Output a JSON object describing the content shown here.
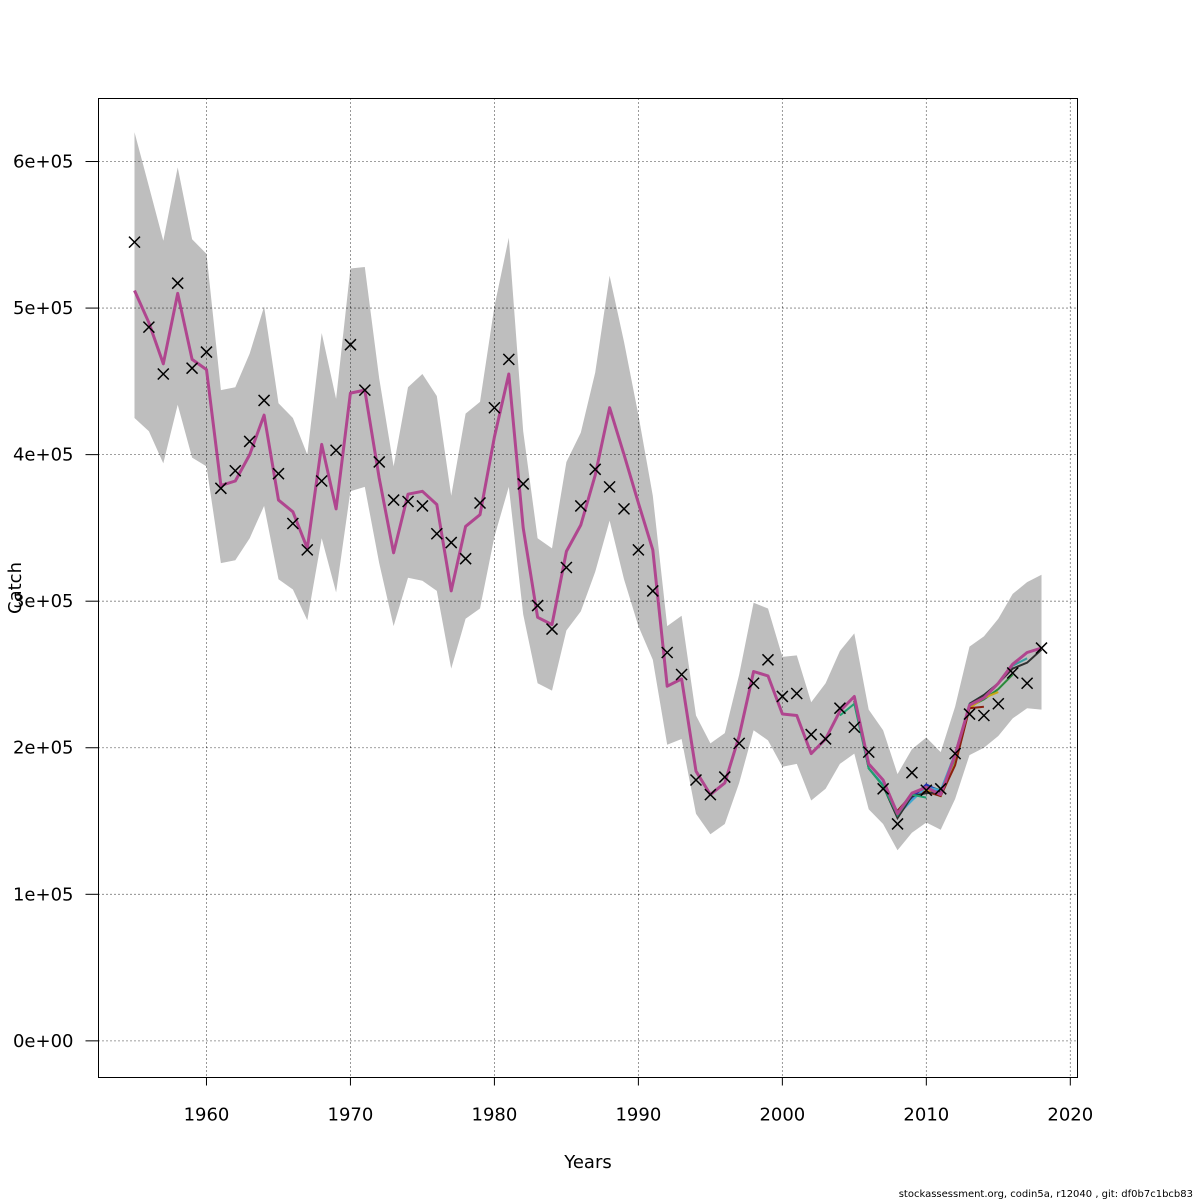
{
  "chart_data": {
    "type": "line",
    "xlabel": "Years",
    "ylabel": "Catch",
    "xlim": [
      1952.5,
      2020.5
    ],
    "ylim": [
      -25000,
      643000
    ],
    "xticks": [
      1960,
      1970,
      1980,
      1990,
      2000,
      2010,
      2020
    ],
    "xtick_labels": [
      "1960",
      "1970",
      "1980",
      "1990",
      "2000",
      "2010",
      "2020"
    ],
    "yticks": [
      0,
      100000,
      200000,
      300000,
      400000,
      500000,
      600000
    ],
    "ytick_labels": [
      "0e+00",
      "1e+05",
      "2e+05",
      "3e+05",
      "4e+05",
      "5e+05",
      "6e+05"
    ],
    "grid": true,
    "footer": "stockassessment.org, codin5a, r12040 , git: df0b7c1bcb83",
    "colors": {
      "band": "#bebebe",
      "main_line": "#b0468f",
      "observations": "#000000",
      "retro": [
        "#3a9e9e",
        "#2a8a3a",
        "#c8a818",
        "#8a2010",
        "#2030b0",
        "#40a8d0",
        "#303030",
        "#20a070"
      ]
    },
    "years": [
      1955,
      1956,
      1957,
      1958,
      1959,
      1960,
      1961,
      1962,
      1963,
      1964,
      1965,
      1966,
      1967,
      1968,
      1969,
      1970,
      1971,
      1972,
      1973,
      1974,
      1975,
      1976,
      1977,
      1978,
      1979,
      1980,
      1981,
      1982,
      1983,
      1984,
      1985,
      1986,
      1987,
      1988,
      1989,
      1990,
      1991,
      1992,
      1993,
      1994,
      1995,
      1996,
      1997,
      1998,
      1999,
      2000,
      2001,
      2002,
      2003,
      2004,
      2005,
      2006,
      2007,
      2008,
      2009,
      2010,
      2011,
      2012,
      2013,
      2014,
      2015,
      2016,
      2017,
      2018
    ],
    "observed_catch": [
      545000,
      487000,
      455000,
      517000,
      459000,
      470000,
      377000,
      389000,
      409000,
      437000,
      387000,
      353000,
      335000,
      382000,
      403000,
      475000,
      444000,
      395000,
      369000,
      368000,
      365000,
      346000,
      340000,
      329000,
      367000,
      432000,
      465000,
      380000,
      297000,
      281000,
      323000,
      365000,
      390000,
      378000,
      363000,
      335000,
      307000,
      265000,
      250000,
      178000,
      168000,
      180000,
      203000,
      244000,
      260000,
      235000,
      237000,
      209000,
      206000,
      227000,
      214000,
      197000,
      172000,
      148000,
      183000,
      171000,
      172000,
      196000,
      223000,
      222000,
      230000,
      251000,
      244000,
      268000
    ],
    "estimated_catch": [
      512000,
      490000,
      462000,
      510000,
      465000,
      458000,
      379000,
      382000,
      400000,
      427000,
      369000,
      361000,
      336000,
      407000,
      363000,
      442000,
      444000,
      384000,
      333000,
      373000,
      375000,
      366000,
      307000,
      351000,
      359000,
      412000,
      455000,
      350000,
      289000,
      284000,
      334000,
      352000,
      386000,
      432000,
      400000,
      367000,
      335000,
      242000,
      247000,
      184000,
      168000,
      176000,
      208000,
      252000,
      249000,
      223000,
      222000,
      196000,
      206000,
      225000,
      235000,
      189000,
      178000,
      155000,
      169000,
      173000,
      168000,
      195000,
      229000,
      234000,
      244000,
      257000,
      265000,
      268000
    ],
    "ci_lower": [
      425000,
      416000,
      394000,
      434000,
      398000,
      392000,
      326000,
      328000,
      343000,
      365000,
      315000,
      308000,
      287000,
      343000,
      306000,
      375000,
      378000,
      326000,
      283000,
      316000,
      314000,
      307000,
      254000,
      288000,
      295000,
      344000,
      378000,
      291000,
      244000,
      239000,
      280000,
      293000,
      320000,
      355000,
      315000,
      283000,
      260000,
      202000,
      206000,
      155000,
      141000,
      148000,
      176000,
      212000,
      205000,
      187000,
      189000,
      164000,
      172000,
      189000,
      196000,
      158000,
      148000,
      130000,
      142000,
      149000,
      144000,
      165000,
      195000,
      200000,
      208000,
      220000,
      227000,
      226000
    ],
    "ci_upper": [
      620000,
      583000,
      546000,
      596000,
      547000,
      537000,
      444000,
      446000,
      469000,
      501000,
      435000,
      425000,
      400000,
      483000,
      438000,
      527000,
      528000,
      452000,
      392000,
      446000,
      455000,
      440000,
      372000,
      428000,
      436000,
      501000,
      548000,
      416000,
      343000,
      336000,
      395000,
      415000,
      456000,
      522000,
      477000,
      427000,
      372000,
      283000,
      290000,
      222000,
      203000,
      210000,
      250000,
      299000,
      295000,
      262000,
      263000,
      231000,
      244000,
      266000,
      278000,
      226000,
      212000,
      182000,
      199000,
      207000,
      197000,
      228000,
      269000,
      276000,
      288000,
      305000,
      313000,
      318000
    ],
    "retro_series": [
      {
        "years": [
          2011,
          2012,
          2013,
          2014,
          2015,
          2016,
          2017
        ],
        "values": [
          168000,
          192000,
          230000,
          236000,
          244000,
          256000,
          261000
        ]
      },
      {
        "years": [
          2010,
          2011,
          2012,
          2013,
          2014,
          2015,
          2016
        ],
        "values": [
          174000,
          171000,
          193000,
          228000,
          233000,
          240000,
          250000
        ]
      },
      {
        "years": [
          2009,
          2010,
          2011,
          2012,
          2013,
          2014,
          2015
        ],
        "values": [
          167000,
          171000,
          167000,
          189000,
          227000,
          234000,
          238000
        ]
      },
      {
        "years": [
          2008,
          2009,
          2010,
          2011,
          2012,
          2013,
          2014
        ],
        "values": [
          157000,
          168000,
          170000,
          167000,
          188000,
          227000,
          228000
        ]
      },
      {
        "years": [
          2007,
          2008,
          2009,
          2010,
          2011,
          2012,
          2013
        ],
        "values": [
          176000,
          156000,
          166000,
          175000,
          170000,
          196000,
          229000
        ]
      },
      {
        "years": [
          2006,
          2007,
          2008,
          2009,
          2010,
          2011,
          2012
        ],
        "values": [
          186000,
          175000,
          154000,
          164000,
          173000,
          171000,
          196000
        ]
      },
      {
        "years": [
          2005,
          2006,
          2007,
          2008,
          2009,
          2010,
          2011
        ],
        "values": [
          232000,
          186000,
          174000,
          152000,
          167000,
          169000,
          170000
        ]
      },
      {
        "years": [
          2004,
          2005,
          2006,
          2007,
          2008,
          2009,
          2010
        ],
        "values": [
          222000,
          230000,
          186000,
          174000,
          154000,
          168000,
          166000
        ]
      },
      {
        "years": [
          2013,
          2014,
          2015,
          2016,
          2017,
          2018
        ],
        "values": [
          230000,
          236000,
          244000,
          254000,
          258000,
          267000
        ]
      }
    ]
  }
}
